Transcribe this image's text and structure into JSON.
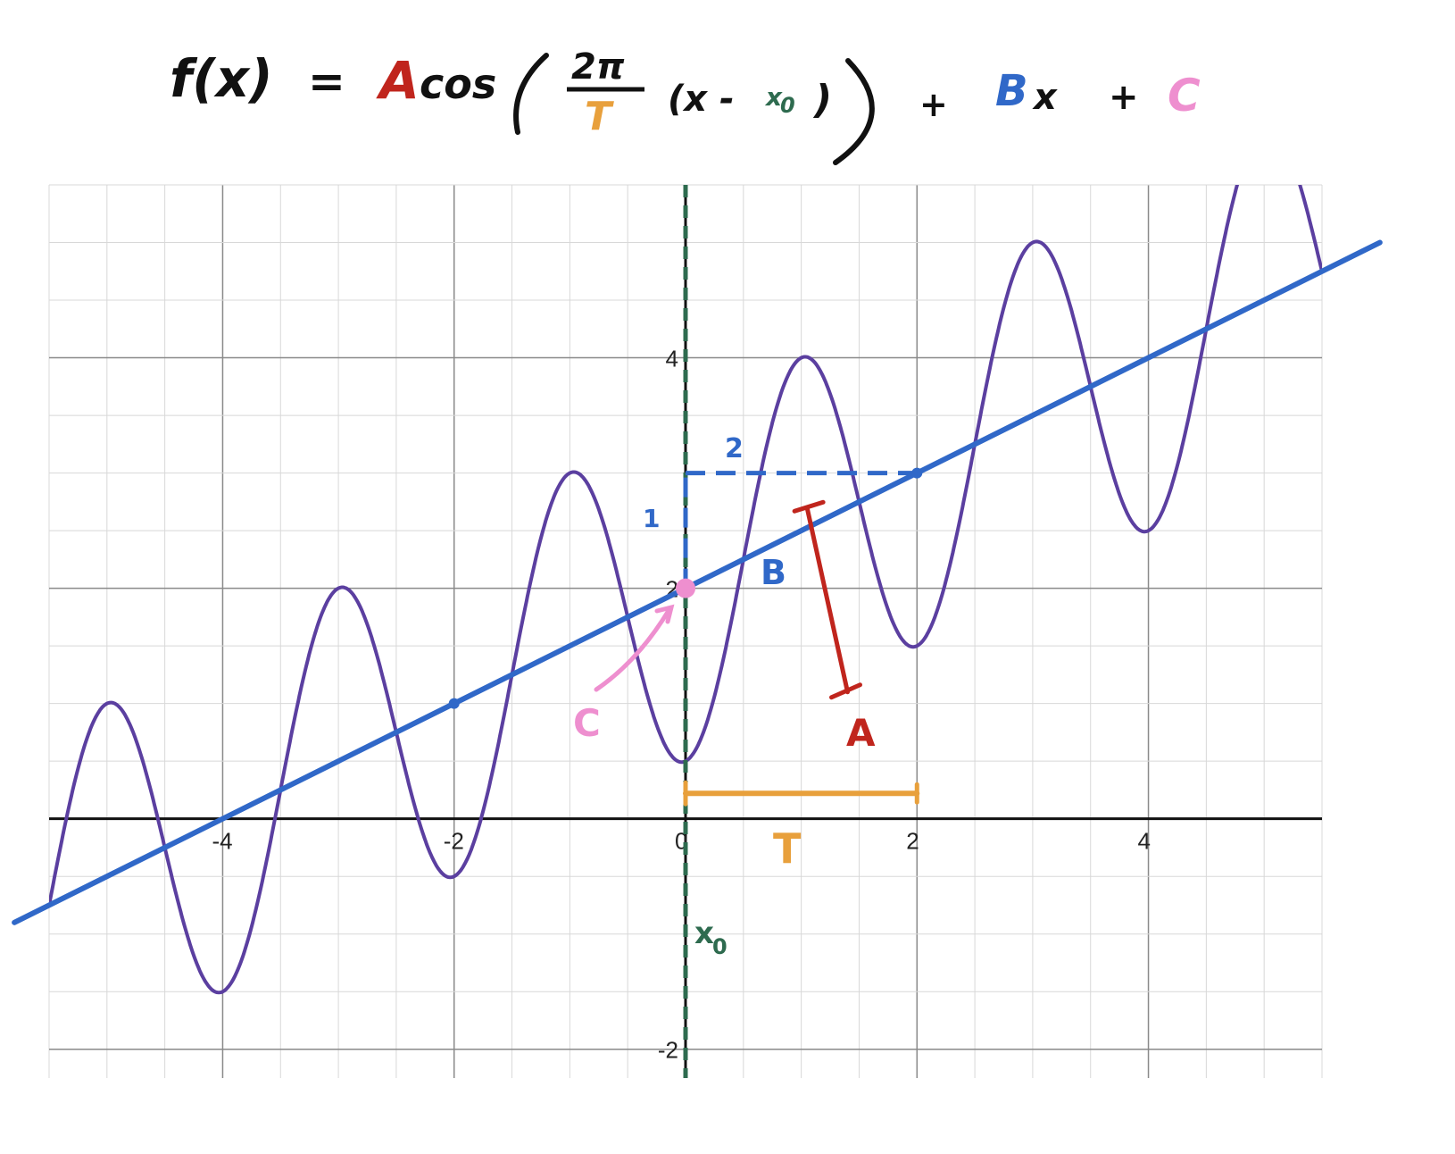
{
  "formula": {
    "lhs": "f(x)",
    "eq": "=",
    "A": "A",
    "cos": "cos",
    "two_pi": "2π",
    "T": "T",
    "x_minus": "(x -",
    "x0": "x",
    "x0_sub": "0",
    "close": ")",
    "plus1": "+",
    "B": "B",
    "Bx_x": "x",
    "plus2": "+",
    "C": "C"
  },
  "colors": {
    "A": "#c0251d",
    "T": "#e8a03c",
    "x0": "#2e6b4f",
    "B": "#3068c8",
    "C": "#ee8fcf",
    "curve": "#5b3fa0",
    "text": "#111111"
  },
  "annotations": {
    "A": "A",
    "B": "B",
    "C": "C",
    "T": "T",
    "x0_label": "x",
    "x0_sub": "0",
    "rise": "1",
    "run": "2"
  },
  "chart_data": {
    "type": "line",
    "xlim": [
      -5.5,
      5.5
    ],
    "ylim": [
      -2.25,
      5.5
    ],
    "grid": true,
    "minor_grid_step": 0.5,
    "major_grid_step": 2,
    "x_ticks": [
      -4,
      -2,
      0,
      2,
      4
    ],
    "x_tick_labels": [
      "-4",
      "-2",
      "0",
      "2",
      "4"
    ],
    "y_ticks": [
      -2,
      2,
      4
    ],
    "y_tick_labels": [
      "-2",
      "2",
      "4"
    ],
    "params": {
      "A": -1.5,
      "T": 2,
      "x0": 0,
      "B": 0.5,
      "C": 2
    },
    "series": [
      {
        "kind": "curve",
        "expr": "A*cos(2*pi/T*(x-x0)) + B*x + C",
        "x_range": [
          -5.5,
          5.5
        ]
      },
      {
        "kind": "line",
        "expr": "B*x + C",
        "x_range": [
          -5.8,
          6.0
        ]
      }
    ],
    "points": [
      {
        "x": 0,
        "y": 2
      },
      {
        "x": -2,
        "y": 1
      },
      {
        "x": 2,
        "y": 3
      }
    ],
    "x0_line": {
      "x": 0
    },
    "slope_triangle": {
      "from": [
        0,
        2
      ],
      "corner": [
        0,
        3
      ],
      "to": [
        2,
        3
      ]
    },
    "amplitude_bar": {
      "from": [
        1.05,
        2.7
      ],
      "to": [
        1.4,
        1.1
      ]
    },
    "period_bar": {
      "from": [
        0,
        0.22
      ],
      "to": [
        2,
        0.22
      ]
    }
  }
}
